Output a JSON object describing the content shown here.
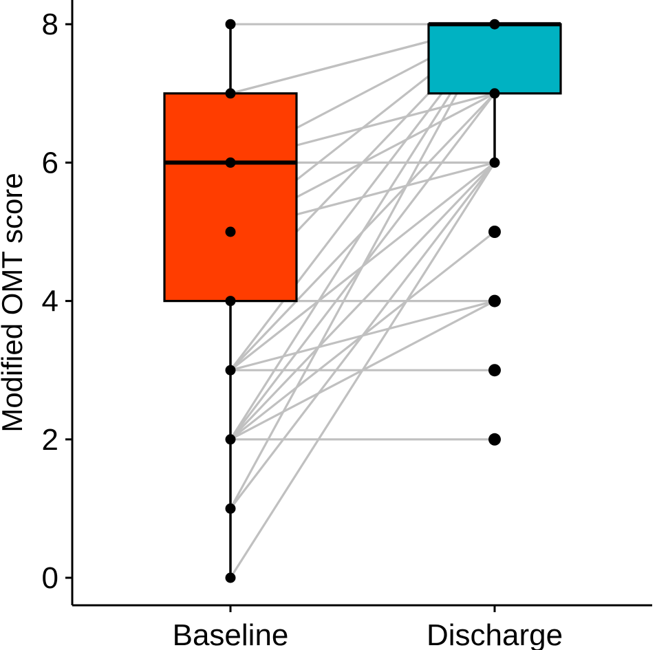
{
  "chart_data": {
    "type": "boxplot",
    "title": "",
    "xlabel": "",
    "ylabel": "Modified OMT score",
    "categories": [
      "Baseline",
      "Discharge"
    ],
    "yticks": [
      "0",
      "2",
      "4",
      "6",
      "8"
    ],
    "ylim": [
      -0.4,
      8.3
    ],
    "grid": false,
    "legend": "none",
    "boxes": [
      {
        "category": "Baseline",
        "color": "#FF3D00",
        "min": 0,
        "q1": 4,
        "median": 6,
        "q3": 7,
        "max": 8,
        "points": [
          0,
          1,
          2,
          3,
          4,
          5,
          6,
          7,
          8
        ]
      },
      {
        "category": "Discharge",
        "color": "#00B2C2",
        "min": 6,
        "q1": 7,
        "median": 8,
        "q3": 8,
        "max": 8,
        "outliers": [
          2,
          3,
          4,
          5
        ],
        "points": [
          2,
          3,
          4,
          5,
          6,
          7,
          8
        ]
      }
    ],
    "paired_line_color": "#C0C0C0",
    "pairs": [
      [
        8,
        8
      ],
      [
        7,
        8
      ],
      [
        7,
        8
      ],
      [
        6,
        8
      ],
      [
        6,
        7
      ],
      [
        6,
        6
      ],
      [
        5,
        8
      ],
      [
        5,
        7
      ],
      [
        5,
        6
      ],
      [
        4,
        8
      ],
      [
        4,
        4
      ],
      [
        3,
        8
      ],
      [
        3,
        7
      ],
      [
        3,
        6
      ],
      [
        3,
        4
      ],
      [
        3,
        3
      ],
      [
        2,
        8
      ],
      [
        2,
        7
      ],
      [
        2,
        6
      ],
      [
        2,
        5
      ],
      [
        2,
        4
      ],
      [
        2,
        2
      ],
      [
        1,
        8
      ],
      [
        1,
        6
      ],
      [
        0,
        6
      ]
    ]
  }
}
